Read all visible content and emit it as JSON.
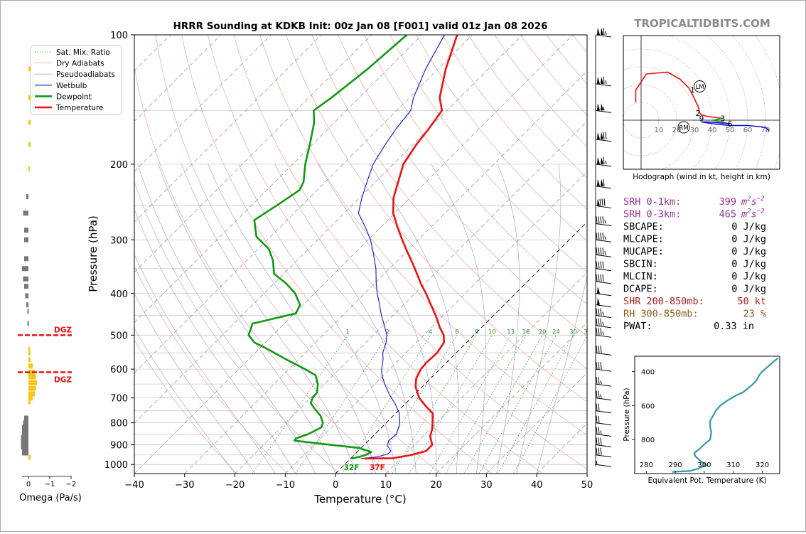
{
  "title": "HRRR Sounding at KDKB Init: 00z Jan 08 [F001] valid 01z Jan 08 2026",
  "brand": "TROPICALTIDBITS.COM",
  "colors": {
    "temperature": "#ee1111",
    "dewpoint": "#119911",
    "wetbulb": "#1111dd",
    "dry_adiabat": "#f0a0a0",
    "pseudoadiabat": "#a8a8d8",
    "mixing_ratio": "#2e9a2e",
    "isotherm": "#8a8a8a",
    "dgz": "#ee1111",
    "omega_neg": "#f5c518",
    "omega_pos": "#777777",
    "hodo_0_3": "#ee1111",
    "hodo_3_6": "#22aa22",
    "hodo_6_9": "#1111dd",
    "theta_e": "#3399aa",
    "srh": "#993399",
    "shr": "#aa2222",
    "rh": "#8a5a10"
  },
  "legend": [
    {
      "label": "Sat. Mix. Ratio",
      "style": "dotted",
      "color": "#2e9a2e"
    },
    {
      "label": "Dry Adiabats",
      "style": "solid-thin",
      "color": "#f0a0a0"
    },
    {
      "label": "Pseudoadiabats",
      "style": "solid-thin",
      "color": "#a8a8d8"
    },
    {
      "label": "Wetbulb",
      "style": "solid",
      "color": "#1111dd"
    },
    {
      "label": "Dewpoint",
      "style": "thick",
      "color": "#119911"
    },
    {
      "label": "Temperature",
      "style": "thick",
      "color": "#ee1111"
    }
  ],
  "chart_data": [
    {
      "type": "line",
      "name": "skew-t",
      "xlabel": "Temperature (°C)",
      "ylabel": "Pressure (hPa)",
      "xlim": [
        -40,
        50
      ],
      "ylim": [
        1050,
        100
      ],
      "yscale": "log",
      "skew": "45 degree isotherms",
      "x_ticks": [
        -40,
        -30,
        -20,
        -10,
        0,
        10,
        20,
        30,
        40,
        50
      ],
      "x_tick_labels": [
        "−40",
        "−30",
        "−20",
        "−10",
        "0",
        "10",
        "20",
        "30",
        "40",
        "50"
      ],
      "y_ticks": [
        100,
        200,
        300,
        400,
        500,
        600,
        700,
        800,
        900,
        1000
      ],
      "mixing_ratio_labels": [
        "1",
        "2",
        "4",
        "6",
        "8",
        "10",
        "13",
        "16",
        "20",
        "24",
        "30",
        "36"
      ],
      "surface_labels": {
        "dewpoint": "32F",
        "temperature": "37F"
      },
      "series": [
        {
          "name": "Temperature",
          "points": [
            [
              969,
              2.8
            ],
            [
              967,
              8.3
            ],
            [
              951,
              11.3
            ],
            [
              930,
              13.5
            ],
            [
              900,
              13.5
            ],
            [
              860,
              11.4
            ],
            [
              825,
              10.3
            ],
            [
              800,
              9.2
            ],
            [
              760,
              7.3
            ],
            [
              730,
              4.4
            ],
            [
              700,
              1.6
            ],
            [
              660,
              -1.3
            ],
            [
              630,
              -2.9
            ],
            [
              600,
              -3.8
            ],
            [
              580,
              -4.0
            ],
            [
              550,
              -3.8
            ],
            [
              520,
              -4.5
            ],
            [
              500,
              -6.0
            ],
            [
              480,
              -8.3
            ],
            [
              450,
              -11.5
            ],
            [
              420,
              -15.2
            ],
            [
              400,
              -17.8
            ],
            [
              380,
              -20.7
            ],
            [
              360,
              -23.5
            ],
            [
              340,
              -26.5
            ],
            [
              320,
              -29.8
            ],
            [
              300,
              -33.2
            ],
            [
              280,
              -36.7
            ],
            [
              260,
              -40.3
            ],
            [
              240,
              -43.2
            ],
            [
              220,
              -45.5
            ],
            [
              200,
              -48.0
            ],
            [
              180,
              -49.3
            ],
            [
              165,
              -50.0
            ],
            [
              150,
              -51.0
            ],
            [
              140,
              -54.0
            ],
            [
              120,
              -58.5
            ],
            [
              100,
              -63.0
            ]
          ]
        },
        {
          "name": "Dewpoint",
          "points": [
            [
              969,
              0.2
            ],
            [
              960,
              1.4
            ],
            [
              950,
              2.3
            ],
            [
              935,
              2.8
            ],
            [
              915,
              -0.5
            ],
            [
              900,
              -6.7
            ],
            [
              880,
              -14.7
            ],
            [
              870,
              -14.9
            ],
            [
              850,
              -13.3
            ],
            [
              820,
              -12.0
            ],
            [
              800,
              -12.6
            ],
            [
              770,
              -14.5
            ],
            [
              740,
              -17.2
            ],
            [
              720,
              -18.9
            ],
            [
              700,
              -19.6
            ],
            [
              680,
              -19.8
            ],
            [
              650,
              -21.3
            ],
            [
              620,
              -23.5
            ],
            [
              600,
              -26.8
            ],
            [
              570,
              -32.4
            ],
            [
              540,
              -38.0
            ],
            [
              520,
              -42.2
            ],
            [
              500,
              -44.8
            ],
            [
              470,
              -46.3
            ],
            [
              445,
              -39.7
            ],
            [
              425,
              -40.6
            ],
            [
              400,
              -43.8
            ],
            [
              380,
              -47.4
            ],
            [
              360,
              -51.9
            ],
            [
              335,
              -54.8
            ],
            [
              315,
              -57.9
            ],
            [
              295,
              -62.8
            ],
            [
              270,
              -66.5
            ],
            [
              250,
              -65.0
            ],
            [
              230,
              -63.5
            ],
            [
              220,
              -64.3
            ],
            [
              200,
              -67.5
            ],
            [
              180,
              -70.5
            ],
            [
              160,
              -74.0
            ],
            [
              150,
              -76.5
            ],
            [
              140,
              -75.5
            ],
            [
              120,
              -74.0
            ],
            [
              100,
              -73.0
            ]
          ]
        },
        {
          "name": "Wetbulb",
          "points": [
            [
              969,
              2.0
            ],
            [
              960,
              5.0
            ],
            [
              945,
              6.5
            ],
            [
              930,
              6.5
            ],
            [
              905,
              4.8
            ],
            [
              880,
              4.0
            ],
            [
              850,
              4.3
            ],
            [
              800,
              2.7
            ],
            [
              760,
              0.7
            ],
            [
              720,
              -2.2
            ],
            [
              690,
              -4.8
            ],
            [
              650,
              -8.0
            ],
            [
              620,
              -10.3
            ],
            [
              600,
              -11.6
            ],
            [
              570,
              -13.2
            ],
            [
              550,
              -14.6
            ],
            [
              520,
              -16.0
            ],
            [
              500,
              -17.3
            ],
            [
              470,
              -20.2
            ],
            [
              450,
              -22.3
            ],
            [
              420,
              -25.3
            ],
            [
              400,
              -27.5
            ],
            [
              380,
              -29.6
            ],
            [
              350,
              -32.7
            ],
            [
              320,
              -36.6
            ],
            [
              300,
              -39.5
            ],
            [
              280,
              -43.1
            ],
            [
              260,
              -47.2
            ],
            [
              240,
              -49.5
            ],
            [
              220,
              -51.7
            ],
            [
              200,
              -54.0
            ],
            [
              180,
              -55.5
            ],
            [
              165,
              -56.5
            ],
            [
              150,
              -57.2
            ],
            [
              140,
              -59.2
            ],
            [
              120,
              -62.5
            ],
            [
              100,
              -65.5
            ]
          ]
        }
      ]
    },
    {
      "type": "bar",
      "name": "omega",
      "xlabel": "Omega (Pa/s)",
      "x_ticks": [
        0,
        -1,
        -2
      ],
      "x_tick_labels": [
        "0",
        "−1",
        "−2"
      ],
      "dgz_label": "DGZ",
      "dgz_pressures": [
        500,
        610
      ],
      "bars": [
        [
          963,
          -0.1
        ],
        [
          940,
          0.3
        ],
        [
          925,
          0.3
        ],
        [
          910,
          0.35
        ],
        [
          895,
          0.35
        ],
        [
          880,
          0.35
        ],
        [
          865,
          0.35
        ],
        [
          850,
          0.3
        ],
        [
          835,
          0.3
        ],
        [
          820,
          0.3
        ],
        [
          800,
          0.25
        ],
        [
          780,
          0.2
        ],
        [
          715,
          -0.1
        ],
        [
          700,
          -0.2
        ],
        [
          685,
          -0.3
        ],
        [
          665,
          -0.35
        ],
        [
          645,
          -0.4
        ],
        [
          625,
          -0.35
        ],
        [
          610,
          -0.3
        ],
        [
          590,
          -0.2
        ],
        [
          570,
          -0.1
        ],
        [
          550,
          -0.1
        ],
        [
          540,
          -0.05
        ],
        [
          470,
          0.05
        ],
        [
          440,
          0.05
        ],
        [
          425,
          0.1
        ],
        [
          405,
          0.15
        ],
        [
          385,
          0.2
        ],
        [
          370,
          0.25
        ],
        [
          350,
          0.3
        ],
        [
          332,
          0.2
        ],
        [
          300,
          0.2
        ],
        [
          285,
          0.2
        ],
        [
          260,
          0.25
        ],
        [
          238,
          0.1
        ],
        [
          205,
          -0.05
        ],
        [
          180,
          -0.1
        ],
        [
          160,
          -0.1
        ],
        [
          140,
          -0.1
        ],
        [
          120,
          -0.1
        ]
      ]
    },
    {
      "type": "line",
      "name": "hodograph",
      "xlabel": "Hodograph (wind in kt, height in km)",
      "ring_labels": [
        "10",
        "20",
        "30",
        "40",
        "50",
        "60",
        "70"
      ],
      "storm_motion_labels": [
        "LM",
        "RM"
      ],
      "height_labels": [
        {
          "label": "1",
          "u": 29,
          "v": 17
        },
        {
          "label": "2",
          "u": 32,
          "v": 4
        },
        {
          "label": "3",
          "u": 46,
          "v": 1
        },
        {
          "label": "6",
          "u": 50,
          "v": -2
        },
        {
          "label": "9",
          "u": 34,
          "v": 1
        }
      ],
      "segments": [
        {
          "name": "0-3 km",
          "points": [
            [
              -3,
              10
            ],
            [
              -3,
              17
            ],
            [
              3,
              26
            ],
            [
              15,
              27
            ],
            [
              22,
              23
            ],
            [
              27,
              18
            ],
            [
              30,
              12
            ],
            [
              32,
              8
            ],
            [
              33,
              4
            ],
            [
              34,
              3
            ],
            [
              38,
              2
            ],
            [
              46,
              1
            ]
          ]
        },
        {
          "name": "3-6 km",
          "points": [
            [
              46,
              1
            ],
            [
              40,
              0
            ],
            [
              50,
              -2
            ]
          ]
        },
        {
          "name": "6-9 km",
          "points": [
            [
              50,
              -2
            ],
            [
              38,
              -1
            ],
            [
              34,
              -1
            ],
            [
              40,
              -2
            ],
            [
              50,
              -3
            ],
            [
              60,
              -3
            ],
            [
              70,
              -4
            ],
            [
              72,
              -6
            ]
          ]
        }
      ],
      "storm_motion": {
        "LM": [
          33,
          19
        ],
        "RM": [
          24,
          -4
        ]
      }
    },
    {
      "type": "line",
      "name": "theta-e",
      "xlabel": "Equivalent Pot. Temperature (K)",
      "ylabel": "Pressure (hPa)",
      "xlim": [
        276,
        326
      ],
      "ylim": [
        1000,
        310
      ],
      "x_ticks": [
        280,
        290,
        300,
        310,
        320
      ],
      "y_ticks": [
        400,
        600,
        800
      ],
      "points": [
        [
          990,
          289
        ],
        [
          985,
          295
        ],
        [
          970,
          298
        ],
        [
          950,
          300.7
        ],
        [
          930,
          299
        ],
        [
          900,
          297
        ],
        [
          880,
          296.5
        ],
        [
          860,
          298
        ],
        [
          820,
          300.5
        ],
        [
          800,
          302
        ],
        [
          760,
          302.4
        ],
        [
          720,
          302
        ],
        [
          690,
          302
        ],
        [
          660,
          303
        ],
        [
          630,
          304
        ],
        [
          600,
          305.5
        ],
        [
          570,
          308
        ],
        [
          540,
          311
        ],
        [
          520,
          313.5
        ],
        [
          500,
          315
        ],
        [
          470,
          317
        ],
        [
          450,
          318
        ],
        [
          420,
          319
        ],
        [
          400,
          320
        ],
        [
          370,
          322
        ],
        [
          340,
          324
        ],
        [
          320,
          325.5
        ]
      ]
    }
  ],
  "stats": [
    {
      "label": "SRH 0-1km:",
      "value": "399",
      "unit": "m2s-2",
      "color": "srh"
    },
    {
      "label": "SRH 0-3km:",
      "value": "465",
      "unit": "m2s-2",
      "color": "srh"
    },
    {
      "label": "SBCAPE:",
      "value": "0 J/kg",
      "color": "text"
    },
    {
      "label": "MLCAPE:",
      "value": "0 J/kg",
      "color": "text"
    },
    {
      "label": "MUCAPE:",
      "value": "0 J/kg",
      "color": "text"
    },
    {
      "label": "SBCIN:",
      "value": "0 J/kg",
      "color": "text"
    },
    {
      "label": "MLCIN:",
      "value": "0 J/kg",
      "color": "text"
    },
    {
      "label": "DCAPE:",
      "value": "0 J/kg",
      "color": "text"
    },
    {
      "label": "SHR 200-850mb:",
      "value": "50 kt",
      "color": "shr"
    },
    {
      "label": "RH 300-850mb:",
      "value": "23 %",
      "color": "rh"
    },
    {
      "label": "PWAT:",
      "value": "0.33 in",
      "color": "text"
    }
  ],
  "wind_barbs": [
    {
      "p": 100,
      "speed": 115
    },
    {
      "p": 130,
      "speed": 115
    },
    {
      "p": 150,
      "speed": 105
    },
    {
      "p": 175,
      "speed": 120
    },
    {
      "p": 200,
      "speed": 115
    },
    {
      "p": 225,
      "speed": 110
    },
    {
      "p": 250,
      "speed": 80
    },
    {
      "p": 275,
      "speed": 45
    },
    {
      "p": 300,
      "speed": 45
    },
    {
      "p": 325,
      "speed": 45
    },
    {
      "p": 350,
      "speed": 40
    },
    {
      "p": 375,
      "speed": 40
    },
    {
      "p": 400,
      "speed": 50
    },
    {
      "p": 425,
      "speed": 50
    },
    {
      "p": 450,
      "speed": 35
    },
    {
      "p": 475,
      "speed": 35
    },
    {
      "p": 500,
      "speed": 35
    },
    {
      "p": 550,
      "speed": 30
    },
    {
      "p": 600,
      "speed": 30
    },
    {
      "p": 650,
      "speed": 25
    },
    {
      "p": 700,
      "speed": 25
    },
    {
      "p": 750,
      "speed": 20
    },
    {
      "p": 800,
      "speed": 20
    },
    {
      "p": 850,
      "speed": 25
    },
    {
      "p": 900,
      "speed": 30
    },
    {
      "p": 950,
      "speed": 30
    },
    {
      "p": 1000,
      "speed": 5
    }
  ]
}
